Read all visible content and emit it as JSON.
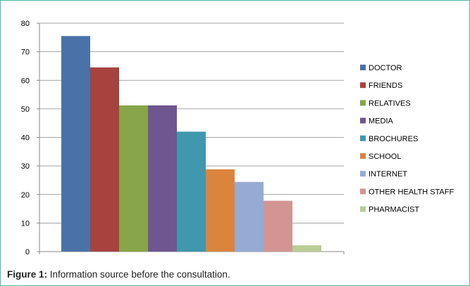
{
  "chart_data": {
    "type": "bar",
    "title": "",
    "xlabel": "",
    "ylabel": "",
    "ylim": [
      0,
      80
    ],
    "yticks": [
      0,
      10,
      20,
      30,
      40,
      50,
      60,
      70,
      80
    ],
    "grid": true,
    "legend_position": "right",
    "series": [
      {
        "name": "DOCTOR",
        "value": 75.5,
        "color": "#4a72a8"
      },
      {
        "name": "FRIENDS",
        "value": 64.5,
        "color": "#a8423f"
      },
      {
        "name": "RELATIVES",
        "value": 51.2,
        "color": "#88a54a"
      },
      {
        "name": "MEDIA",
        "value": 51.2,
        "color": "#6f5690"
      },
      {
        "name": "BROCHURES",
        "value": 42,
        "color": "#3f98ad"
      },
      {
        "name": "SCHOOL",
        "value": 28.8,
        "color": "#db843d"
      },
      {
        "name": "INTERNET",
        "value": 24.4,
        "color": "#95abd3"
      },
      {
        "name": "OTHER HEALTH STAFF",
        "value": 17.8,
        "color": "#d29594"
      },
      {
        "name": "PHARMACIST",
        "value": 2.2,
        "color": "#b9cd96"
      }
    ]
  },
  "caption": {
    "label": "Figure 1:",
    "text": " Information source before the consultation."
  }
}
